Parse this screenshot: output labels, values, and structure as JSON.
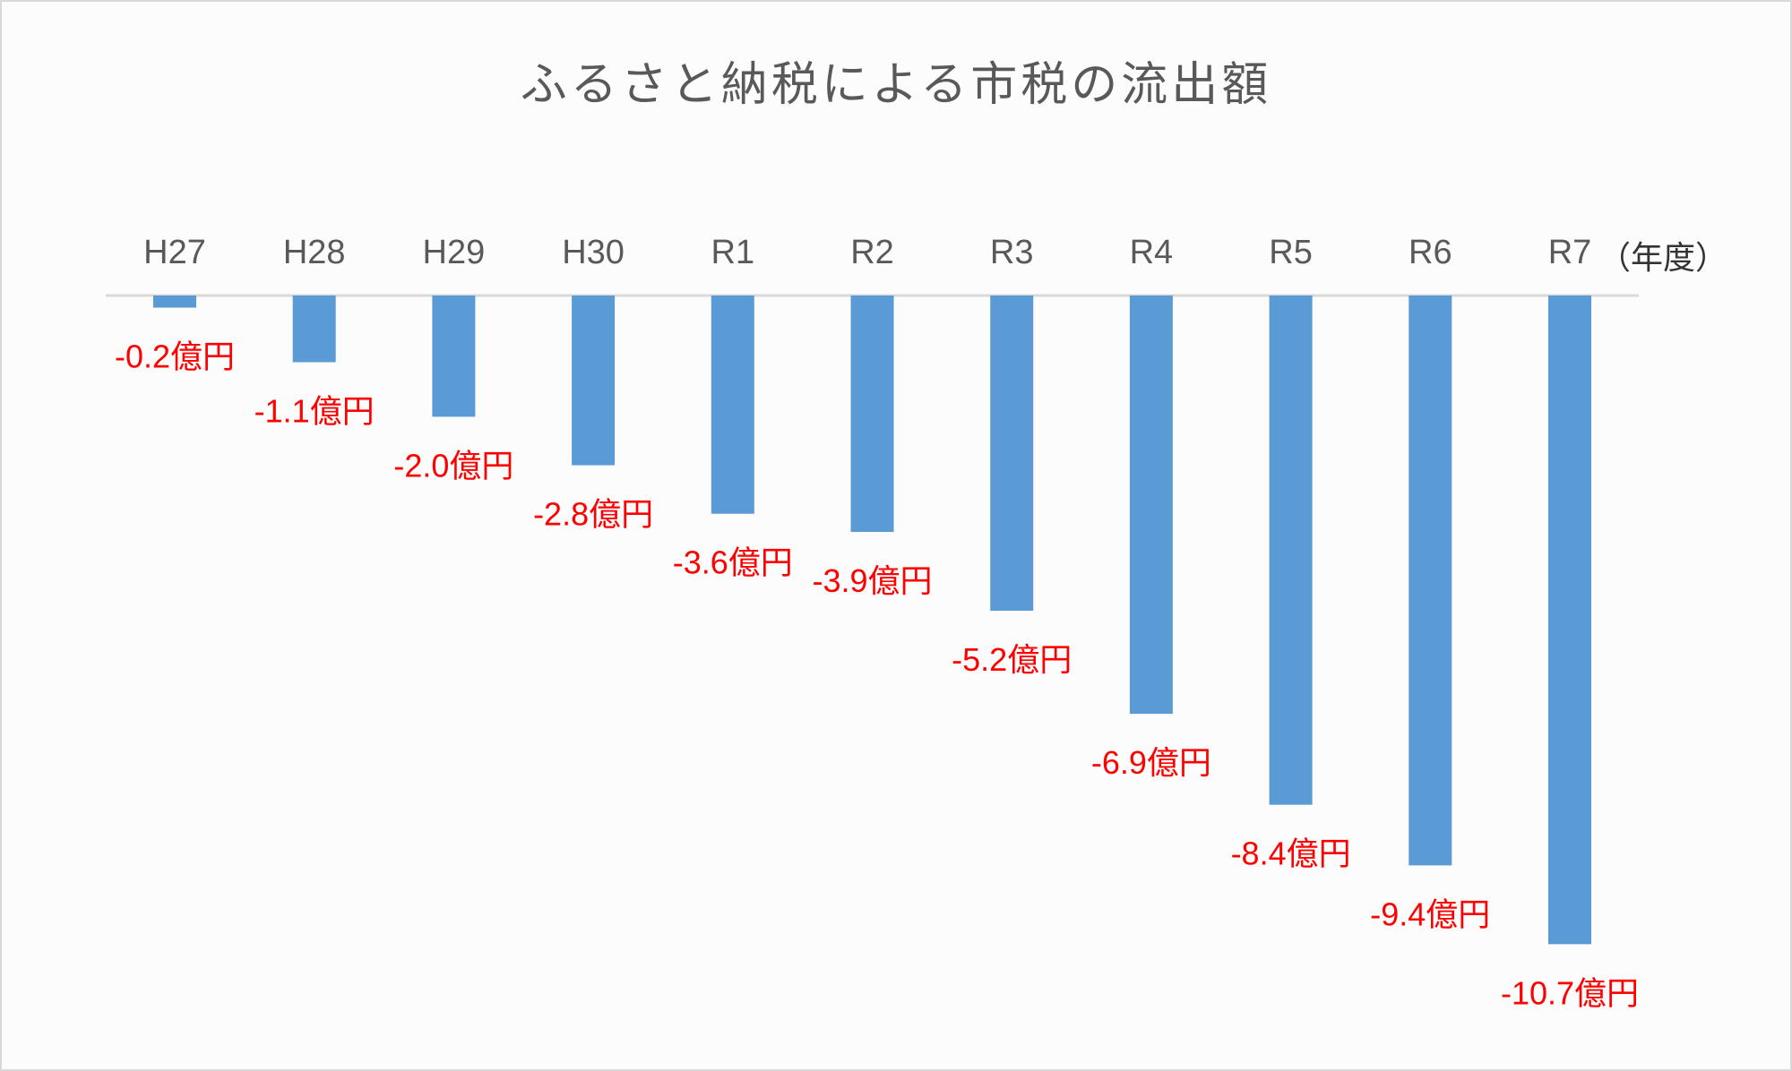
{
  "chart_data": {
    "type": "bar",
    "title": "ふるさと納税による市税の流出額",
    "categories": [
      "H27",
      "H28",
      "H29",
      "H30",
      "R1",
      "R2",
      "R3",
      "R4",
      "R5",
      "R6",
      "R7"
    ],
    "values": [
      -0.2,
      -1.1,
      -2.0,
      -2.8,
      -3.6,
      -3.9,
      -5.2,
      -6.9,
      -8.4,
      -9.4,
      -10.7
    ],
    "data_labels": [
      "-0.2億円",
      "-1.1億円",
      "-2.0億円",
      "-2.8億円",
      "-3.6億円",
      "-3.9億円",
      "-5.2億円",
      "-6.9億円",
      "-8.4億円",
      "-9.4億円",
      "-10.7億円"
    ],
    "xlabel": "（年度）",
    "ylabel": "",
    "x_axis_position": "top",
    "grid": false,
    "legend": "none",
    "colors": {
      "bar": "#5b9bd5",
      "data_label": "#ff0000",
      "axis": "#d9d9d9",
      "text": "#595959"
    }
  }
}
